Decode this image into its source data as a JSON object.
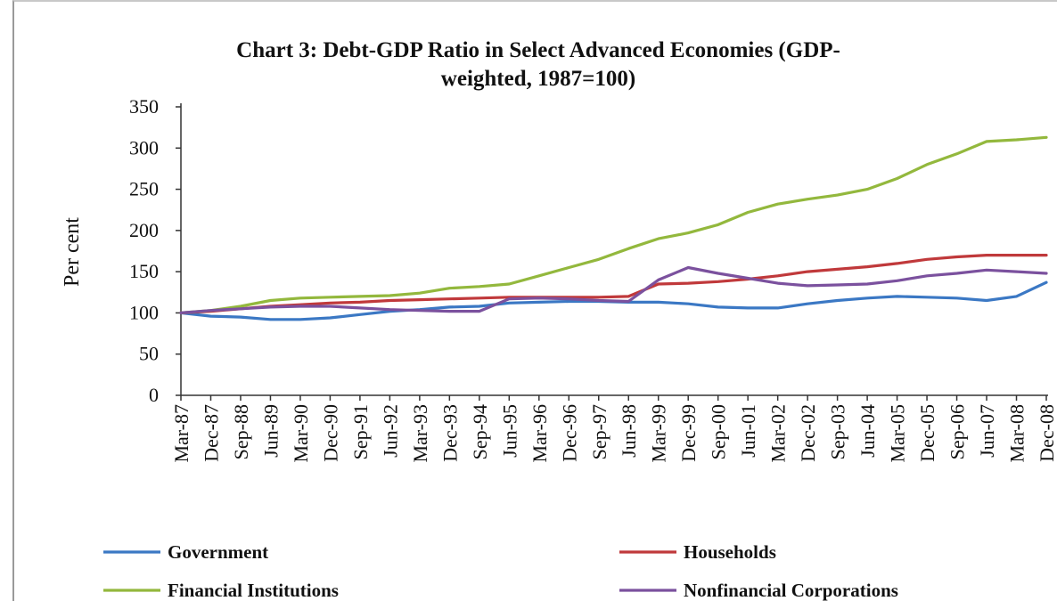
{
  "chart_data": {
    "type": "line",
    "title_line1": "Chart 3: Debt-GDP Ratio in Select Advanced Economies (GDP-",
    "title_line2": "weighted, 1987=100)",
    "xlabel": "",
    "ylabel": "Per cent",
    "ylim": [
      0,
      350
    ],
    "yticks": [
      0,
      50,
      100,
      150,
      200,
      250,
      300,
      350
    ],
    "grid": false,
    "legend_position": "bottom",
    "x_tick_labels": [
      "Mar-87",
      "Dec-87",
      "Sep-88",
      "Jun-89",
      "Mar-90",
      "Dec-90",
      "Sep-91",
      "Jun-92",
      "Mar-93",
      "Dec-93",
      "Sep-94",
      "Jun-95",
      "Mar-96",
      "Dec-96",
      "Sep-97",
      "Jun-98",
      "Mar-99",
      "Dec-99",
      "Sep-00",
      "Jun-01",
      "Mar-02",
      "Dec-02",
      "Sep-03",
      "Jun-04",
      "Mar-05",
      "Dec-05",
      "Sep-06",
      "Jun-07",
      "Mar-08",
      "Dec-08"
    ],
    "series": [
      {
        "name": "Government",
        "color": "#3b78c4",
        "values": [
          100,
          96,
          95,
          92,
          92,
          94,
          98,
          102,
          104,
          107,
          108,
          112,
          113,
          114,
          114,
          113,
          113,
          111,
          107,
          106,
          106,
          111,
          115,
          118,
          120,
          119,
          118,
          115,
          120,
          137
        ]
      },
      {
        "name": "Households",
        "color": "#c0393b",
        "values": [
          100,
          102,
          105,
          108,
          110,
          112,
          113,
          115,
          116,
          117,
          118,
          119,
          119,
          119,
          119,
          120,
          135,
          136,
          138,
          141,
          145,
          150,
          153,
          156,
          160,
          165,
          168,
          170,
          170,
          170
        ]
      },
      {
        "name": "Financial Institutions",
        "color": "#93b83d",
        "values": [
          100,
          103,
          108,
          115,
          118,
          119,
          120,
          121,
          124,
          130,
          132,
          135,
          145,
          155,
          165,
          178,
          190,
          197,
          207,
          222,
          232,
          238,
          243,
          250,
          263,
          280,
          293,
          308,
          310,
          313
        ]
      },
      {
        "name": "Nonfinancial Corporations",
        "color": "#7b519e",
        "values": [
          100,
          103,
          105,
          107,
          108,
          108,
          106,
          104,
          103,
          102,
          102,
          117,
          118,
          117,
          115,
          114,
          140,
          155,
          148,
          142,
          136,
          133,
          134,
          135,
          139,
          145,
          148,
          152,
          150,
          148
        ]
      }
    ]
  }
}
